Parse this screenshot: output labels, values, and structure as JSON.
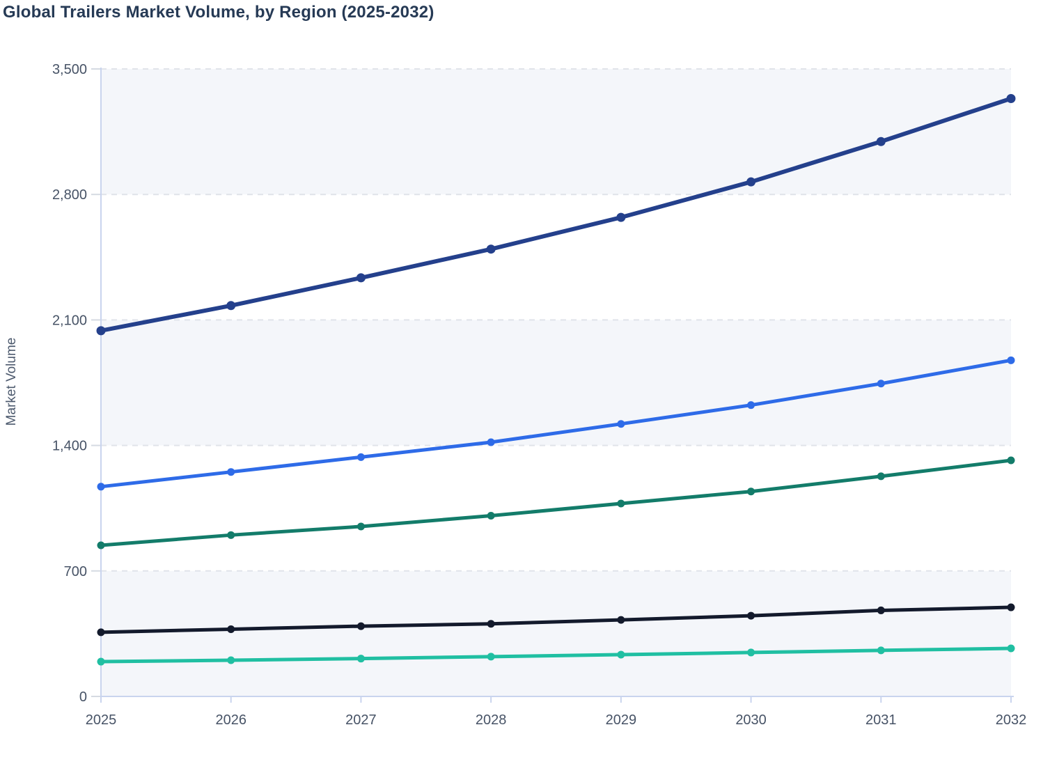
{
  "chart_data": {
    "type": "line",
    "title": "Global Trailers Market Volume, by Region (2025-2032)",
    "xlabel": "",
    "ylabel": "Market Volume",
    "categories": [
      "2025",
      "2026",
      "2027",
      "2028",
      "2029",
      "2030",
      "2031",
      "2032"
    ],
    "ylim": [
      0,
      3500
    ],
    "y_ticks": [
      {
        "value": 0,
        "label": "0"
      },
      {
        "value": 700,
        "label": "700"
      },
      {
        "value": 1400,
        "label": "1,400"
      },
      {
        "value": 2100,
        "label": "2,100"
      },
      {
        "value": 2800,
        "label": "2,800"
      },
      {
        "value": 3500,
        "label": "3,500"
      }
    ],
    "series": [
      {
        "name": "dark-navy",
        "color": "#24408c",
        "marker": "circle",
        "values": [
          2040,
          2180,
          2335,
          2495,
          2672,
          2870,
          3095,
          3335
        ]
      },
      {
        "name": "blue",
        "color": "#2e6be8",
        "marker": "circle",
        "values": [
          1170,
          1252,
          1335,
          1418,
          1520,
          1625,
          1745,
          1875
        ]
      },
      {
        "name": "green",
        "color": "#137c6a",
        "marker": "circle",
        "values": [
          843,
          900,
          948,
          1008,
          1076,
          1143,
          1228,
          1317
        ]
      },
      {
        "name": "black",
        "color": "#131a2c",
        "marker": "circle",
        "values": [
          358,
          375,
          392,
          405,
          427,
          450,
          480,
          497
        ]
      },
      {
        "name": "teal",
        "color": "#20bfa2",
        "marker": "circle",
        "values": [
          194,
          202,
          211,
          222,
          233,
          245,
          257,
          268
        ]
      }
    ],
    "legend": {
      "visible": false
    },
    "grid": {
      "horizontal_dashed": true,
      "alternating_bands": true,
      "band_color": "#f4f6fa",
      "gridline_color": "#e0e3e9",
      "axis_line_color": "#c9d4ee",
      "y_tick_color": "#d5dae2"
    },
    "text_colors": {
      "title": "#263a55",
      "axis_labels": "#475366",
      "ylabel": "#4d5a6e"
    }
  }
}
